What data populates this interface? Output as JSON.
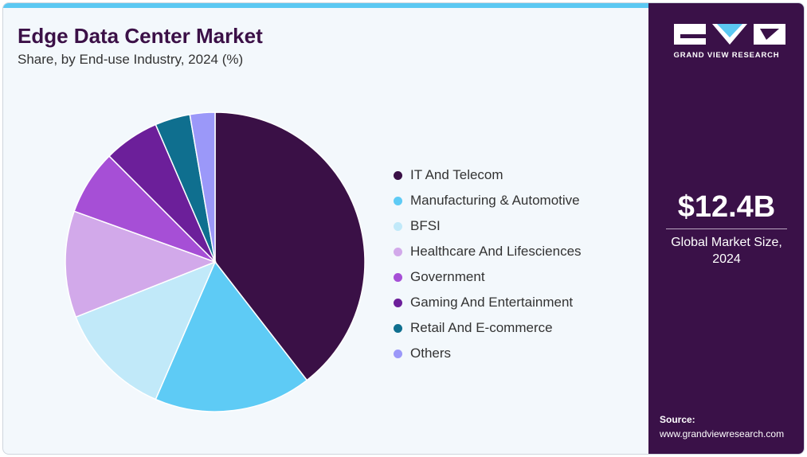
{
  "header": {
    "title": "Edge Data Center Market",
    "subtitle": "Share, by End-use Industry, 2024 (%)"
  },
  "chart_data": {
    "type": "pie",
    "categories": [
      "IT And Telecom",
      "Manufacturing & Automotive",
      "BFSI",
      "Healthcare And Lifesciences",
      "Government",
      "Gaming And Entertainment",
      "Retail And E-commerce",
      "Others"
    ],
    "values": [
      39.5,
      17.0,
      12.5,
      11.5,
      7.0,
      6.0,
      3.8,
      2.7
    ],
    "colors": [
      "#3a1046",
      "#5ecbf5",
      "#c1e9f9",
      "#d2a9ea",
      "#a64fd6",
      "#6c1f9a",
      "#0f6f8f",
      "#9b98f9"
    ],
    "start_angle_deg": 0,
    "direction": "clockwise",
    "legend_position": "right"
  },
  "sidebar": {
    "brand": "GRAND VIEW RESEARCH",
    "market_size": "$12.4B",
    "market_label_line1": "Global Market Size,",
    "market_label_line2": "2024",
    "source_label": "Source:",
    "source_url": "www.grandviewresearch.com"
  }
}
